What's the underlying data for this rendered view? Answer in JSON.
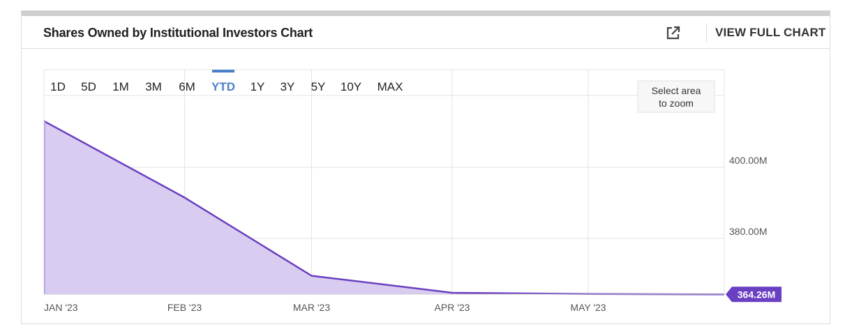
{
  "header": {
    "title": "Shares Owned by Institutional Investors Chart",
    "full_chart_label": "VIEW FULL CHART",
    "popout_icon": "external-link-icon"
  },
  "range_selector": {
    "options": [
      "1D",
      "5D",
      "1M",
      "3M",
      "6M",
      "YTD",
      "1Y",
      "3Y",
      "5Y",
      "10Y",
      "MAX"
    ],
    "selected": "YTD"
  },
  "zoom_hint": [
    "Select area",
    "to zoom"
  ],
  "colors": {
    "line": "#6a3fc1",
    "fill": "#d8cdf0",
    "active_range": "#4a7fc9",
    "grid": "#e3e3e3"
  },
  "chart_data": {
    "type": "area",
    "x": [
      "2023-01-01",
      "2023-02-01",
      "2023-03-01",
      "2023-04-01",
      "2023-05-01",
      "2023-05-31"
    ],
    "series": [
      {
        "values": [
          413.0,
          391.5,
          369.5,
          364.7,
          364.35,
          364.26
        ]
      }
    ],
    "x_ticks": [
      "JAN '23",
      "FEB '23",
      "MAR '23",
      "APR '23",
      "MAY '23"
    ],
    "y_ticks": [
      380,
      400
    ],
    "y_tick_labels": [
      "380.00M",
      "400.00M"
    ],
    "ylim": [
      364.26,
      413.5
    ],
    "last_value_label": "364.26M",
    "title": "",
    "xlabel": "",
    "ylabel": "",
    "grid": true
  }
}
